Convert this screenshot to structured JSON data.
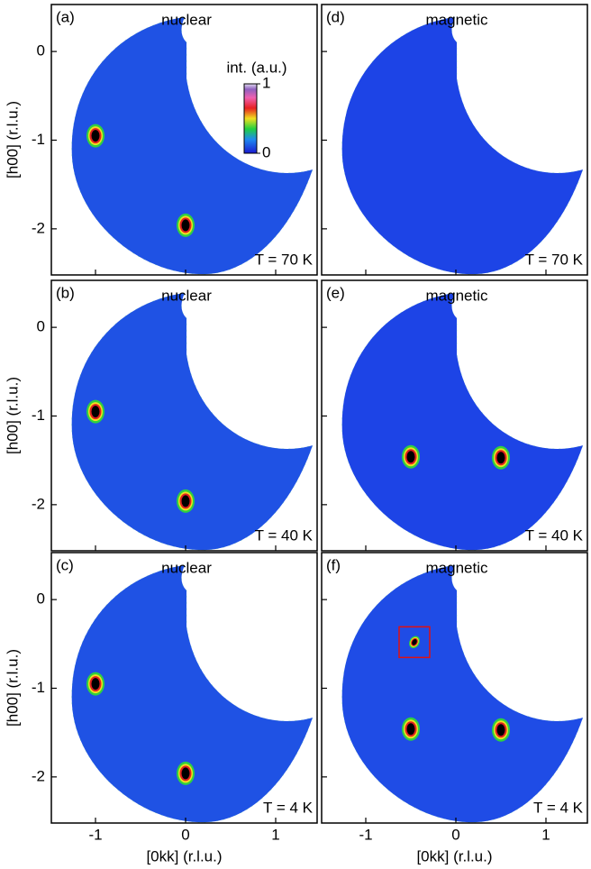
{
  "chart_data": [
    {
      "type": "intensity-map",
      "panel_label": "(a)",
      "title": "nuclear",
      "annotation": "T = 70 K",
      "color": "#1f52e4",
      "xlim": [
        -1.49,
        1.46
      ],
      "ylim": [
        -2.52,
        0.53
      ],
      "xticks": [
        -1,
        0,
        1
      ],
      "yticks": [
        0,
        -1,
        -2
      ],
      "ylabel": "[h00] (r.l.u.)",
      "peaks": {
        "x": [
          -1,
          0
        ],
        "y": [
          -0.95,
          -1.96
        ]
      },
      "colorbar": {
        "label": "int. (a.u.)",
        "ticks": [
          0,
          1
        ]
      }
    },
    {
      "type": "intensity-map",
      "panel_label": "(d)",
      "title": "magnetic",
      "annotation": "T = 70 K",
      "color": "#1d44e6",
      "xlim": [
        -1.49,
        1.46
      ],
      "ylim": [
        -2.52,
        0.53
      ],
      "xticks": [
        -1,
        0,
        1
      ],
      "yticks": [
        0,
        -1,
        -2
      ]
    },
    {
      "type": "intensity-map",
      "panel_label": "(b)",
      "title": "nuclear",
      "annotation": "T = 40 K",
      "color": "#1f52e4",
      "xlim": [
        -1.49,
        1.46
      ],
      "ylim": [
        -2.52,
        0.53
      ],
      "xticks": [
        -1,
        0,
        1
      ],
      "yticks": [
        0,
        -1,
        -2
      ],
      "ylabel": "[h00] (r.l.u.)",
      "peaks": {
        "x": [
          -1,
          0
        ],
        "y": [
          -0.95,
          -1.96
        ]
      }
    },
    {
      "type": "intensity-map",
      "panel_label": "(e)",
      "title": "magnetic",
      "annotation": "T = 40 K",
      "color": "#1d44e6",
      "xlim": [
        -1.49,
        1.46
      ],
      "ylim": [
        -2.52,
        0.53
      ],
      "xticks": [
        -1,
        0,
        1
      ],
      "yticks": [
        0,
        -1,
        -2
      ],
      "peaks": {
        "x": [
          -0.5,
          0.5
        ],
        "y": [
          -1.46,
          -1.47
        ]
      }
    },
    {
      "type": "intensity-map",
      "panel_label": "(c)",
      "title": "nuclear",
      "annotation": "T = 4 K",
      "color": "#1f52e4",
      "xlim": [
        -1.49,
        1.46
      ],
      "ylim": [
        -2.52,
        0.53
      ],
      "xticks": [
        -1,
        0,
        1
      ],
      "yticks": [
        0,
        -1,
        -2
      ],
      "ylabel": "[h00] (r.l.u.)",
      "xlabel": "[0kk] (r.l.u.)",
      "peaks": {
        "x": [
          -1,
          0
        ],
        "y": [
          -0.95,
          -1.96
        ]
      }
    },
    {
      "type": "intensity-map",
      "panel_label": "(f)",
      "title": "magnetic",
      "annotation": "T = 4 K",
      "color": "#1f4ce6",
      "xlim": [
        -1.49,
        1.46
      ],
      "ylim": [
        -2.52,
        0.53
      ],
      "xticks": [
        -1,
        0,
        1
      ],
      "yticks": [
        0,
        -1,
        -2
      ],
      "xlabel": "[0kk] (r.l.u.)",
      "peaks": {
        "x": [
          -0.5,
          0.5,
          -0.46
        ],
        "y": [
          -1.46,
          -1.47,
          -0.48
        ]
      },
      "boxed_peak": 2
    }
  ]
}
